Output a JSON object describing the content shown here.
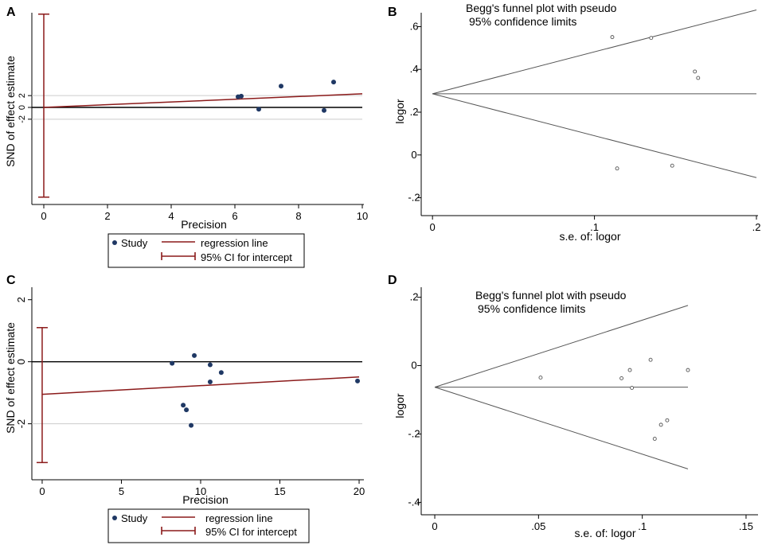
{
  "colors": {
    "axis": "#000000",
    "marker": "#1f3864",
    "regression": "#8b1a1a",
    "ci": "#8b1a1a",
    "funnel": "#555555",
    "grid": "#cccccc"
  },
  "chart_data": [
    {
      "panel": "A",
      "type": "scatter",
      "subtype": "egger_regression",
      "ylabel": "SND of effect estimate",
      "xlabel": "Precision",
      "xlim": [
        -0.3,
        10
      ],
      "ylim": [
        -15.5,
        15.5
      ],
      "xticks": [
        0,
        2,
        4,
        6,
        8,
        10
      ],
      "yticks": [
        -2,
        0,
        2
      ],
      "ytick_labels": [
        "-2",
        "0",
        "2"
      ],
      "points": [
        {
          "x": 6.1,
          "y": 1.8
        },
        {
          "x": 6.2,
          "y": 1.9
        },
        {
          "x": 6.75,
          "y": -0.3
        },
        {
          "x": 7.45,
          "y": 3.6
        },
        {
          "x": 8.8,
          "y": -0.5
        },
        {
          "x": 9.1,
          "y": 4.3
        }
      ],
      "regression": {
        "intercept": 0.0,
        "slope": 0.23
      },
      "ci_intercept": [
        -15.2,
        15.8
      ],
      "reference_lines": [
        0
      ],
      "band_lines": [
        -2,
        2
      ],
      "legend": {
        "items": [
          "Study",
          "regression line",
          "95% CI for intercept"
        ]
      }
    },
    {
      "panel": "B",
      "type": "scatter",
      "subtype": "funnel",
      "title": "Begg's funnel plot with pseudo",
      "subtitle": "95% confidence limits",
      "ylabel": "logor",
      "xlabel": "s.e. of: logor",
      "xlim": [
        -0.005,
        0.2
      ],
      "ylim": [
        -0.25,
        0.65
      ],
      "xticks": [
        0,
        0.1,
        0.2
      ],
      "xtick_labels": [
        "0",
        ".1",
        ".2"
      ],
      "yticks": [
        -0.2,
        0,
        0.2,
        0.4,
        0.6
      ],
      "ytick_labels": [
        "-.2",
        "0",
        ".2",
        ".4",
        ".6"
      ],
      "center": 0.286,
      "funnel_max_se": 0.2,
      "funnel_slope": 1.96,
      "points": [
        {
          "x": 0.111,
          "y": 0.551
        },
        {
          "x": 0.135,
          "y": 0.547
        },
        {
          "x": 0.114,
          "y": -0.063
        },
        {
          "x": 0.148,
          "y": -0.05
        },
        {
          "x": 0.162,
          "y": 0.39
        },
        {
          "x": 0.164,
          "y": 0.36
        }
      ]
    },
    {
      "panel": "C",
      "type": "scatter",
      "subtype": "egger_regression",
      "ylabel": "SND of effect estimate",
      "xlabel": "Precision",
      "xlim": [
        -0.5,
        20.2
      ],
      "ylim": [
        -3.6,
        2.3
      ],
      "xticks": [
        0,
        5,
        10,
        15,
        20
      ],
      "yticks": [
        -2,
        0,
        2
      ],
      "ytick_labels": [
        "-2",
        "0",
        "2"
      ],
      "points": [
        {
          "x": 8.2,
          "y": -0.05
        },
        {
          "x": 9.6,
          "y": 0.2
        },
        {
          "x": 10.6,
          "y": -0.1
        },
        {
          "x": 11.3,
          "y": -0.35
        },
        {
          "x": 10.6,
          "y": -0.65
        },
        {
          "x": 8.9,
          "y": -1.4
        },
        {
          "x": 9.1,
          "y": -1.55
        },
        {
          "x": 9.4,
          "y": -2.05
        },
        {
          "x": 19.9,
          "y": -0.62
        }
      ],
      "regression": {
        "intercept": -1.05,
        "slope": 0.028
      },
      "ci_intercept": [
        -3.25,
        1.1
      ],
      "reference_lines": [
        0
      ],
      "band_lines": [
        -2
      ],
      "legend": {
        "items": [
          "Study",
          "regression line",
          "95% CI for intercept"
        ]
      }
    },
    {
      "panel": "D",
      "type": "scatter",
      "subtype": "funnel",
      "title": "Begg's funnel plot with pseudo",
      "subtitle": "95% confidence limits",
      "ylabel": "logor",
      "xlabel": "s.e. of: logor",
      "xlim": [
        -0.005,
        0.155
      ],
      "ylim": [
        -0.42,
        0.22
      ],
      "xticks": [
        0,
        0.05,
        0.1,
        0.15
      ],
      "xtick_labels": [
        "0",
        ".05",
        ".1",
        ".15"
      ],
      "yticks": [
        -0.4,
        -0.2,
        0,
        0.2
      ],
      "ytick_labels": [
        "-.4",
        "-.2",
        "0",
        ".2"
      ],
      "center": -0.063,
      "funnel_max_se": 0.122,
      "funnel_slope": 1.96,
      "points": [
        {
          "x": 0.051,
          "y": -0.035
        },
        {
          "x": 0.09,
          "y": -0.037
        },
        {
          "x": 0.094,
          "y": -0.013
        },
        {
          "x": 0.095,
          "y": -0.065
        },
        {
          "x": 0.104,
          "y": 0.017
        },
        {
          "x": 0.106,
          "y": -0.214
        },
        {
          "x": 0.109,
          "y": -0.173
        },
        {
          "x": 0.112,
          "y": -0.16
        },
        {
          "x": 0.122,
          "y": -0.013
        }
      ]
    }
  ]
}
